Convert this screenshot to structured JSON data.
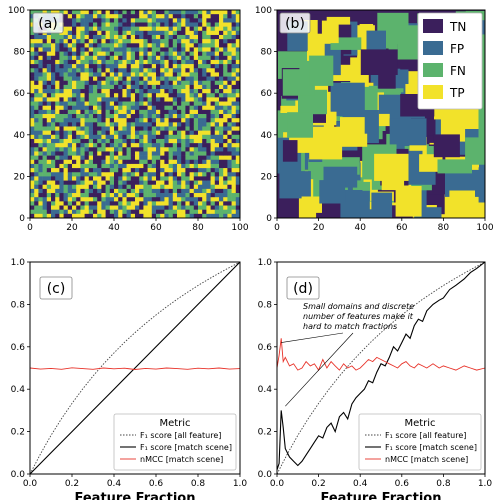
{
  "colors": {
    "TN": "#3b1f5c",
    "FP": "#3a6b92",
    "FN": "#5cb36d",
    "TP": "#f2e22a",
    "f1_all": "#444444",
    "f1_match": "#000000",
    "nmcc": "#e8332a"
  },
  "chart_data": [
    {
      "type": "heatmap",
      "panel_label": "(a)",
      "xlim": [
        0,
        100
      ],
      "ylim": [
        0,
        100
      ],
      "xticks": [
        "0",
        "20",
        "40",
        "60",
        "80",
        "100"
      ],
      "yticks": [
        "0",
        "20",
        "40",
        "60",
        "80",
        "100"
      ],
      "description_categories": [
        "TN",
        "FP",
        "FN",
        "TP"
      ],
      "pattern": "random per-pixel"
    },
    {
      "type": "heatmap",
      "panel_label": "(b)",
      "xlim": [
        0,
        100
      ],
      "ylim": [
        0,
        100
      ],
      "xticks": [
        "0",
        "20",
        "40",
        "60",
        "80",
        "100"
      ],
      "yticks": [
        "0",
        "20",
        "40",
        "60",
        "80",
        "100"
      ],
      "legend": [
        "TN",
        "FP",
        "FN",
        "TP"
      ],
      "pattern": "rectangular domains"
    },
    {
      "type": "line",
      "panel_label": "(c)",
      "xlabel": "Feature Fraction",
      "xlim": [
        0,
        1
      ],
      "ylim": [
        0,
        1
      ],
      "xticks": [
        "0.0",
        "0.2",
        "0.4",
        "0.6",
        "0.8",
        "1.0"
      ],
      "yticks": [
        "0.0",
        "0.2",
        "0.4",
        "0.6",
        "0.8",
        "1.0"
      ],
      "legend_title": "Metric",
      "series": [
        {
          "name": "F₁ score [all feature]",
          "style": "dotted",
          "x": [
            0.0,
            0.05,
            0.1,
            0.15,
            0.2,
            0.25,
            0.3,
            0.35,
            0.4,
            0.45,
            0.5,
            0.55,
            0.6,
            0.65,
            0.7,
            0.75,
            0.8,
            0.85,
            0.9,
            0.95,
            1.0
          ],
          "y": [
            0.0,
            0.095,
            0.182,
            0.261,
            0.333,
            0.4,
            0.462,
            0.519,
            0.571,
            0.621,
            0.667,
            0.71,
            0.75,
            0.788,
            0.824,
            0.857,
            0.889,
            0.919,
            0.947,
            0.974,
            1.0
          ]
        },
        {
          "name": "F₁ score [match scene]",
          "style": "solid",
          "x": [
            0.0,
            0.1,
            0.2,
            0.3,
            0.4,
            0.5,
            0.6,
            0.7,
            0.8,
            0.9,
            1.0
          ],
          "y": [
            0.0,
            0.1,
            0.2,
            0.3,
            0.4,
            0.5,
            0.6,
            0.7,
            0.8,
            0.9,
            1.0
          ]
        },
        {
          "name": "nMCC [match scene]",
          "style": "solid",
          "x": [
            0.0,
            0.05,
            0.1,
            0.15,
            0.2,
            0.25,
            0.3,
            0.35,
            0.4,
            0.45,
            0.5,
            0.55,
            0.6,
            0.65,
            0.7,
            0.75,
            0.8,
            0.85,
            0.9,
            0.95,
            1.0
          ],
          "y": [
            0.5,
            0.495,
            0.498,
            0.494,
            0.501,
            0.497,
            0.494,
            0.5,
            0.496,
            0.499,
            0.493,
            0.498,
            0.495,
            0.5,
            0.497,
            0.494,
            0.499,
            0.496,
            0.5,
            0.495,
            0.497
          ]
        }
      ]
    },
    {
      "type": "line",
      "panel_label": "(d)",
      "xlabel": "Feature Fraction",
      "xlim": [
        0,
        1
      ],
      "ylim": [
        0,
        1
      ],
      "xticks": [
        "0.0",
        "0.2",
        "0.4",
        "0.6",
        "0.8",
        "1.0"
      ],
      "yticks": [
        "0.0",
        "0.2",
        "0.4",
        "0.6",
        "0.8",
        "1.0"
      ],
      "legend_title": "Metric",
      "annotation": [
        "Small domains and discrete",
        "number of features make it",
        "hard to match fractions"
      ],
      "series": [
        {
          "name": "F₁ score [all feature]",
          "style": "dotted",
          "x": [
            0.0,
            0.05,
            0.1,
            0.15,
            0.2,
            0.25,
            0.3,
            0.35,
            0.4,
            0.45,
            0.5,
            0.55,
            0.6,
            0.65,
            0.7,
            0.75,
            0.8,
            0.85,
            0.9,
            0.95,
            1.0
          ],
          "y": [
            0.0,
            0.095,
            0.182,
            0.261,
            0.333,
            0.4,
            0.462,
            0.519,
            0.571,
            0.621,
            0.667,
            0.71,
            0.75,
            0.788,
            0.824,
            0.857,
            0.889,
            0.919,
            0.947,
            0.974,
            1.0
          ]
        },
        {
          "name": "F₁ score [match scene]",
          "style": "solid",
          "x": [
            0.0,
            0.01,
            0.02,
            0.03,
            0.04,
            0.06,
            0.08,
            0.1,
            0.12,
            0.14,
            0.16,
            0.18,
            0.2,
            0.22,
            0.24,
            0.26,
            0.28,
            0.3,
            0.32,
            0.34,
            0.36,
            0.38,
            0.4,
            0.42,
            0.44,
            0.46,
            0.48,
            0.5,
            0.52,
            0.54,
            0.56,
            0.58,
            0.6,
            0.62,
            0.64,
            0.66,
            0.68,
            0.7,
            0.72,
            0.75,
            0.78,
            0.8,
            0.83,
            0.86,
            0.9,
            0.93,
            0.96,
            1.0
          ],
          "y": [
            0.02,
            0.05,
            0.3,
            0.22,
            0.12,
            0.08,
            0.06,
            0.04,
            0.06,
            0.09,
            0.12,
            0.15,
            0.18,
            0.17,
            0.22,
            0.24,
            0.2,
            0.27,
            0.29,
            0.26,
            0.33,
            0.36,
            0.38,
            0.4,
            0.44,
            0.43,
            0.48,
            0.52,
            0.51,
            0.55,
            0.6,
            0.58,
            0.62,
            0.66,
            0.64,
            0.7,
            0.73,
            0.72,
            0.77,
            0.8,
            0.82,
            0.83,
            0.87,
            0.89,
            0.92,
            0.95,
            0.97,
            1.0
          ]
        },
        {
          "name": "nMCC [match scene]",
          "style": "solid",
          "x": [
            0.0,
            0.01,
            0.02,
            0.03,
            0.04,
            0.06,
            0.08,
            0.1,
            0.12,
            0.14,
            0.16,
            0.18,
            0.2,
            0.22,
            0.24,
            0.26,
            0.28,
            0.3,
            0.32,
            0.34,
            0.36,
            0.38,
            0.4,
            0.42,
            0.44,
            0.46,
            0.48,
            0.5,
            0.52,
            0.54,
            0.56,
            0.58,
            0.6,
            0.62,
            0.64,
            0.66,
            0.68,
            0.7,
            0.72,
            0.75,
            0.78,
            0.8,
            0.83,
            0.86,
            0.9,
            0.93,
            0.96,
            1.0
          ],
          "y": [
            0.5,
            0.56,
            0.64,
            0.53,
            0.55,
            0.51,
            0.52,
            0.49,
            0.5,
            0.53,
            0.51,
            0.52,
            0.49,
            0.54,
            0.5,
            0.53,
            0.51,
            0.49,
            0.52,
            0.5,
            0.51,
            0.49,
            0.5,
            0.52,
            0.54,
            0.53,
            0.55,
            0.54,
            0.53,
            0.52,
            0.51,
            0.5,
            0.52,
            0.53,
            0.51,
            0.5,
            0.52,
            0.51,
            0.5,
            0.52,
            0.5,
            0.51,
            0.5,
            0.49,
            0.51,
            0.5,
            0.49,
            0.5
          ]
        }
      ]
    }
  ]
}
